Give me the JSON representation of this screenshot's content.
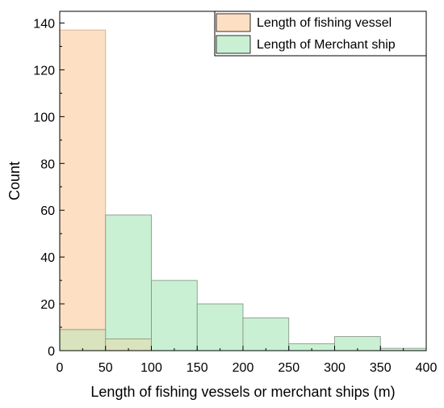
{
  "chart_data": {
    "type": "bar",
    "xlabel": "Length of fishing vessels or merchant ships (m)",
    "ylabel": "Count",
    "xlim": [
      0,
      400
    ],
    "ylim": [
      0,
      145
    ],
    "x_ticks": [
      "0",
      "50",
      "100",
      "150",
      "200",
      "250",
      "300",
      "350",
      "400"
    ],
    "y_ticks": [
      "0",
      "20",
      "40",
      "60",
      "80",
      "100",
      "120",
      "140"
    ],
    "bins": [
      [
        0,
        50
      ],
      [
        50,
        100
      ],
      [
        100,
        150
      ],
      [
        150,
        200
      ],
      [
        200,
        250
      ],
      [
        250,
        300
      ],
      [
        300,
        350
      ],
      [
        350,
        400
      ]
    ],
    "grid": false,
    "legend_position": "top-right",
    "series": [
      {
        "name": "Length of fishing vessel",
        "color": "#fde0c4",
        "values": [
          137,
          5,
          0,
          0,
          0,
          0,
          0,
          0
        ]
      },
      {
        "name": "Length of Merchant ship",
        "color": "#c9f0d3",
        "values": [
          9,
          58,
          30,
          20,
          14,
          3,
          6,
          1
        ]
      }
    ],
    "overlap_color": "#d9e3bd"
  }
}
